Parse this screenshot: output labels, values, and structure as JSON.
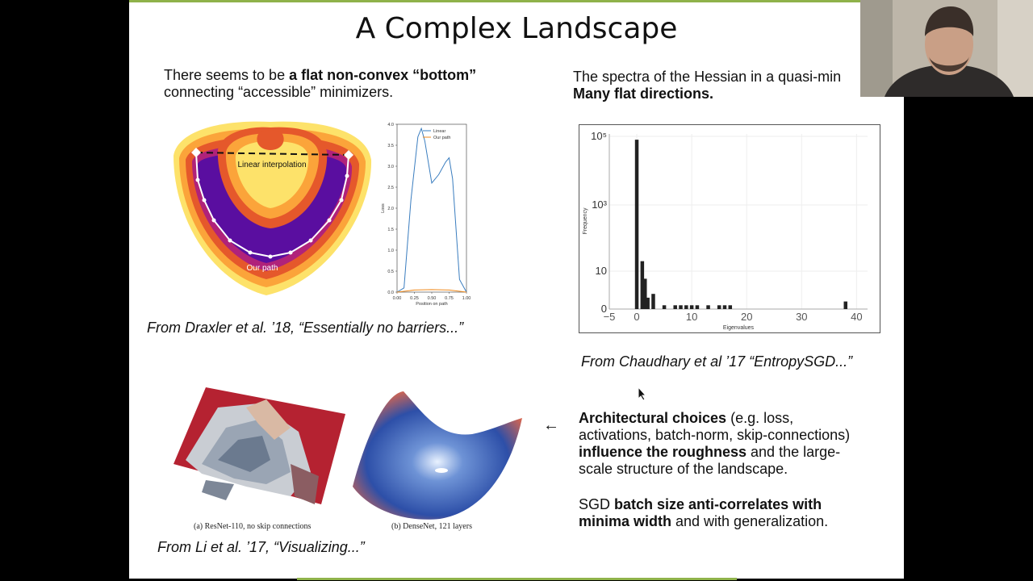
{
  "slide": {
    "title": "A Complex Landscape",
    "left_top_text": {
      "pre": "There seems to be ",
      "bold": "a flat non-convex “bottom”",
      "line2": "connecting “accessible” minimizers."
    },
    "right_top_text": {
      "line1": "The spectra of the Hessian in a quasi-min",
      "bold": "Many flat directions."
    },
    "contour": {
      "linear_label": "Linear interpolation",
      "path_label": "Our path"
    },
    "loss_plot": {
      "ylabel": "Loss",
      "xlabel": "Position on path",
      "yticks": [
        "0.0",
        "0.5",
        "1.0",
        "1.5",
        "2.0",
        "2.5",
        "3.0",
        "3.5",
        "4.0"
      ],
      "xticks": [
        "0.00",
        "0.25",
        "0.50",
        "0.75",
        "1.00"
      ],
      "legend": [
        "Linear",
        "Our path"
      ]
    },
    "hist_plot": {
      "ylabel": "Frequency",
      "xlabel": "Eigenvalues",
      "yticks": [
        "0",
        "10",
        "10³",
        "10⁵"
      ],
      "xticks": [
        "−5",
        "0",
        "10",
        "20",
        "30",
        "40"
      ]
    },
    "caption_draxler": "From Draxler et al. ’18, “Essentially no barriers...”",
    "caption_chaudhary": "From Chaudhary et al ’17 “EntropySGD...”",
    "caption_li": "From Li et al. ’17, “Visualizing...”",
    "surface_a_caption": "(a) ResNet-110, no skip connections",
    "surface_b_caption": "(b) DenseNet, 121 layers",
    "arrow": "←",
    "arch_text": {
      "b1": "Architectural choices",
      "t1": " (e.g. loss,",
      "l2": "activations, batch-norm, skip-connections)",
      "b2": "influence the roughness",
      "t2": " and the large-",
      "l4": "scale structure of the landscape."
    },
    "sgd_text": {
      "t1": "SGD ",
      "b1": "batch size anti-correlates with",
      "b2": "minima width",
      "t2": " and with generalization."
    }
  },
  "chart_data": [
    {
      "type": "line",
      "title": "",
      "xlabel": "Position on path",
      "ylabel": "Loss",
      "xlim": [
        0,
        1
      ],
      "ylim": [
        0,
        4
      ],
      "series": [
        {
          "name": "Linear",
          "x": [
            0.0,
            0.1,
            0.2,
            0.3,
            0.35,
            0.4,
            0.5,
            0.6,
            0.7,
            0.75,
            0.8,
            0.9,
            1.0
          ],
          "values": [
            0.0,
            0.1,
            2.2,
            3.7,
            3.9,
            3.6,
            2.6,
            2.8,
            3.1,
            3.2,
            2.7,
            0.3,
            0.0
          ]
        },
        {
          "name": "Our path",
          "x": [
            0.0,
            0.25,
            0.5,
            0.75,
            1.0
          ],
          "values": [
            0.0,
            0.05,
            0.06,
            0.05,
            0.0
          ]
        }
      ]
    },
    {
      "type": "bar",
      "title": "",
      "xlabel": "Eigenvalues",
      "ylabel": "Frequency",
      "xlim": [
        -5,
        42
      ],
      "yscale": "log",
      "x": [
        0,
        1,
        1.5,
        2,
        3,
        5,
        7,
        8,
        9,
        10,
        11,
        13,
        15,
        16,
        17,
        38
      ],
      "values": [
        80000,
        20,
        8,
        3,
        4,
        1,
        1,
        1,
        1,
        1,
        1,
        1,
        1,
        1,
        1,
        2
      ]
    }
  ]
}
